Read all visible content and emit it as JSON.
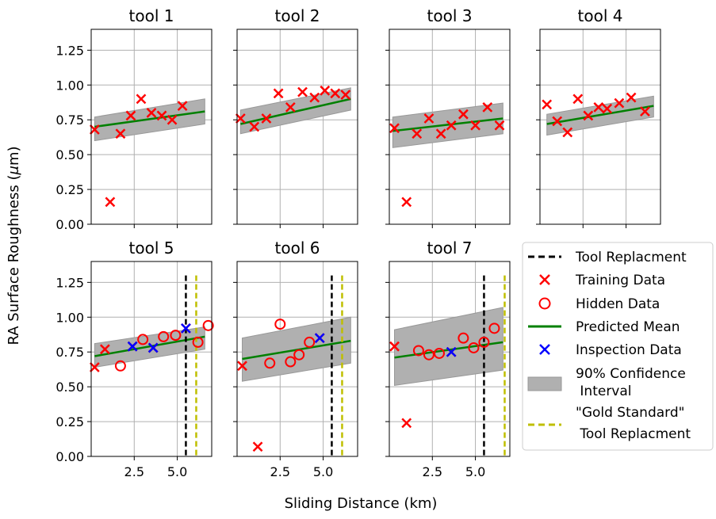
{
  "figure": {
    "ylabel_prefix": "RA Surface Roughness (",
    "ylabel_symbol": "μ",
    "ylabel_suffix": "m)",
    "xlabel": "Sliding Distance (km)"
  },
  "legend": {
    "tool_replacement": "Tool Replacment",
    "training": "Training Data",
    "hidden": "Hidden Data",
    "predicted": "Predicted Mean",
    "inspection": "Inspection Data",
    "ci_line1": "90% Confidence",
    "ci_line2": " Interval",
    "gold_line1": "\"Gold Standard\"",
    "gold_line2": " Tool Replacment"
  },
  "colors": {
    "training": "#ff0000",
    "hidden": "#ff0000",
    "inspection": "#0000ff",
    "predicted": "#008000",
    "ci_fill": "#b0b0b0",
    "tool_replacement": "#000000",
    "gold": "#bfbf00",
    "grid": "#b0b0b0"
  },
  "chart_data": [
    {
      "type": "scatter",
      "title": "tool 1",
      "xlim": [
        0,
        7
      ],
      "ylim": [
        0,
        1.4
      ],
      "xticks": [
        2.5,
        5.0
      ],
      "yticks": [
        0.0,
        0.25,
        0.5,
        0.75,
        1.0,
        1.25
      ],
      "training": [
        [
          0.2,
          0.68
        ],
        [
          1.1,
          0.16
        ],
        [
          1.7,
          0.65
        ],
        [
          2.3,
          0.78
        ],
        [
          2.9,
          0.9
        ],
        [
          3.5,
          0.8
        ],
        [
          4.1,
          0.78
        ],
        [
          4.7,
          0.75
        ],
        [
          5.3,
          0.85
        ]
      ],
      "hidden": [],
      "inspection": [],
      "mean": [
        [
          0.2,
          0.7
        ],
        [
          6.6,
          0.81
        ]
      ],
      "ci_upper": [
        [
          0.2,
          0.77
        ],
        [
          6.6,
          0.9
        ]
      ],
      "ci_lower": [
        [
          0.2,
          0.6
        ],
        [
          6.6,
          0.72
        ]
      ],
      "replacement": null,
      "gold_standard": null
    },
    {
      "type": "scatter",
      "title": "tool 2",
      "xlim": [
        0,
        7
      ],
      "ylim": [
        0,
        1.4
      ],
      "xticks": [
        2.5,
        5.0
      ],
      "yticks": [
        0.0,
        0.25,
        0.5,
        0.75,
        1.0,
        1.25
      ],
      "training": [
        [
          0.2,
          0.76
        ],
        [
          1.0,
          0.7
        ],
        [
          1.7,
          0.76
        ],
        [
          2.4,
          0.94
        ],
        [
          3.1,
          0.84
        ],
        [
          3.8,
          0.95
        ],
        [
          4.5,
          0.91
        ],
        [
          5.1,
          0.96
        ],
        [
          5.7,
          0.94
        ],
        [
          6.3,
          0.93
        ]
      ],
      "hidden": [],
      "inspection": [],
      "mean": [
        [
          0.2,
          0.72
        ],
        [
          6.6,
          0.9
        ]
      ],
      "ci_upper": [
        [
          0.2,
          0.82
        ],
        [
          6.6,
          0.98
        ]
      ],
      "ci_lower": [
        [
          0.2,
          0.65
        ],
        [
          6.6,
          0.82
        ]
      ],
      "replacement": null,
      "gold_standard": null
    },
    {
      "type": "scatter",
      "title": "tool 3",
      "xlim": [
        0,
        7
      ],
      "ylim": [
        0,
        1.4
      ],
      "xticks": [
        2.5,
        5.0
      ],
      "yticks": [
        0.0,
        0.25,
        0.5,
        0.75,
        1.0,
        1.25
      ],
      "training": [
        [
          0.3,
          0.69
        ],
        [
          1.0,
          0.16
        ],
        [
          1.6,
          0.65
        ],
        [
          2.3,
          0.76
        ],
        [
          3.0,
          0.65
        ],
        [
          3.6,
          0.71
        ],
        [
          4.3,
          0.79
        ],
        [
          5.0,
          0.71
        ],
        [
          5.7,
          0.84
        ],
        [
          6.4,
          0.71
        ]
      ],
      "hidden": [],
      "inspection": [],
      "mean": [
        [
          0.2,
          0.67
        ],
        [
          6.6,
          0.76
        ]
      ],
      "ci_upper": [
        [
          0.2,
          0.77
        ],
        [
          6.6,
          0.87
        ]
      ],
      "ci_lower": [
        [
          0.2,
          0.55
        ],
        [
          6.6,
          0.65
        ]
      ],
      "replacement": null,
      "gold_standard": null
    },
    {
      "type": "scatter",
      "title": "tool 4",
      "xlim": [
        0,
        7
      ],
      "ylim": [
        0,
        1.4
      ],
      "xticks": [
        2.5,
        5.0
      ],
      "yticks": [
        0.0,
        0.25,
        0.5,
        0.75,
        1.0,
        1.25
      ],
      "training": [
        [
          0.4,
          0.86
        ],
        [
          1.0,
          0.74
        ],
        [
          1.6,
          0.66
        ],
        [
          2.2,
          0.9
        ],
        [
          2.8,
          0.78
        ],
        [
          3.4,
          0.84
        ],
        [
          3.9,
          0.83
        ],
        [
          4.6,
          0.87
        ],
        [
          5.3,
          0.91
        ],
        [
          6.1,
          0.81
        ]
      ],
      "hidden": [],
      "inspection": [],
      "mean": [
        [
          0.4,
          0.72
        ],
        [
          6.6,
          0.85
        ]
      ],
      "ci_upper": [
        [
          0.4,
          0.79
        ],
        [
          6.6,
          0.92
        ]
      ],
      "ci_lower": [
        [
          0.4,
          0.64
        ],
        [
          6.6,
          0.77
        ]
      ],
      "replacement": null,
      "gold_standard": null
    },
    {
      "type": "scatter",
      "title": "tool 5",
      "xlim": [
        0,
        7
      ],
      "ylim": [
        0,
        1.4
      ],
      "xticks": [
        2.5,
        5.0
      ],
      "yticks": [
        0.0,
        0.25,
        0.5,
        0.75,
        1.0,
        1.25
      ],
      "training": [
        [
          0.2,
          0.64
        ],
        [
          0.8,
          0.77
        ],
        [
          2.4,
          0.79
        ],
        [
          3.6,
          0.78
        ],
        [
          5.5,
          0.92
        ]
      ],
      "hidden": [
        [
          1.7,
          0.65
        ],
        [
          3.0,
          0.84
        ],
        [
          4.2,
          0.86
        ],
        [
          4.9,
          0.87
        ],
        [
          6.2,
          0.82
        ],
        [
          6.8,
          0.94
        ]
      ],
      "inspection": [
        [
          2.4,
          0.79
        ],
        [
          3.6,
          0.78
        ],
        [
          5.5,
          0.92
        ]
      ],
      "mean": [
        [
          0.2,
          0.72
        ],
        [
          6.6,
          0.86
        ]
      ],
      "ci_upper": [
        [
          0.2,
          0.81
        ],
        [
          6.6,
          0.93
        ]
      ],
      "ci_lower": [
        [
          0.2,
          0.64
        ],
        [
          6.6,
          0.77
        ]
      ],
      "replacement": 5.5,
      "gold_standard": 6.1
    },
    {
      "type": "scatter",
      "title": "tool 6",
      "xlim": [
        0,
        7
      ],
      "ylim": [
        0,
        1.4
      ],
      "xticks": [
        2.5,
        5.0
      ],
      "yticks": [
        0.0,
        0.25,
        0.5,
        0.75,
        1.0,
        1.25
      ],
      "training": [
        [
          0.3,
          0.65
        ],
        [
          1.2,
          0.07
        ],
        [
          4.8,
          0.85
        ]
      ],
      "hidden": [
        [
          1.9,
          0.67
        ],
        [
          2.5,
          0.95
        ],
        [
          3.1,
          0.68
        ],
        [
          3.6,
          0.73
        ],
        [
          4.2,
          0.82
        ]
      ],
      "inspection": [
        [
          4.8,
          0.85
        ]
      ],
      "mean": [
        [
          0.3,
          0.7
        ],
        [
          6.6,
          0.83
        ]
      ],
      "ci_upper": [
        [
          0.3,
          0.85
        ],
        [
          6.6,
          1.0
        ]
      ],
      "ci_lower": [
        [
          0.3,
          0.54
        ],
        [
          6.6,
          0.67
        ]
      ],
      "replacement": 5.5,
      "gold_standard": 6.1
    },
    {
      "type": "scatter",
      "title": "tool 7",
      "xlim": [
        0,
        7
      ],
      "ylim": [
        0,
        1.4
      ],
      "xticks": [
        2.5,
        5.0
      ],
      "yticks": [
        0.0,
        0.25,
        0.5,
        0.75,
        1.0,
        1.25
      ],
      "training": [
        [
          0.3,
          0.79
        ],
        [
          1.0,
          0.24
        ],
        [
          3.6,
          0.75
        ]
      ],
      "hidden": [
        [
          1.7,
          0.76
        ],
        [
          2.3,
          0.73
        ],
        [
          2.9,
          0.74
        ],
        [
          4.3,
          0.85
        ],
        [
          4.9,
          0.78
        ],
        [
          5.5,
          0.82
        ],
        [
          6.1,
          0.92
        ]
      ],
      "inspection": [
        [
          3.6,
          0.75
        ]
      ],
      "mean": [
        [
          0.3,
          0.71
        ],
        [
          6.6,
          0.82
        ]
      ],
      "ci_upper": [
        [
          0.3,
          0.91
        ],
        [
          6.6,
          1.07
        ]
      ],
      "ci_lower": [
        [
          0.3,
          0.51
        ],
        [
          6.6,
          0.62
        ]
      ],
      "replacement": 5.5,
      "gold_standard": 6.7
    }
  ]
}
